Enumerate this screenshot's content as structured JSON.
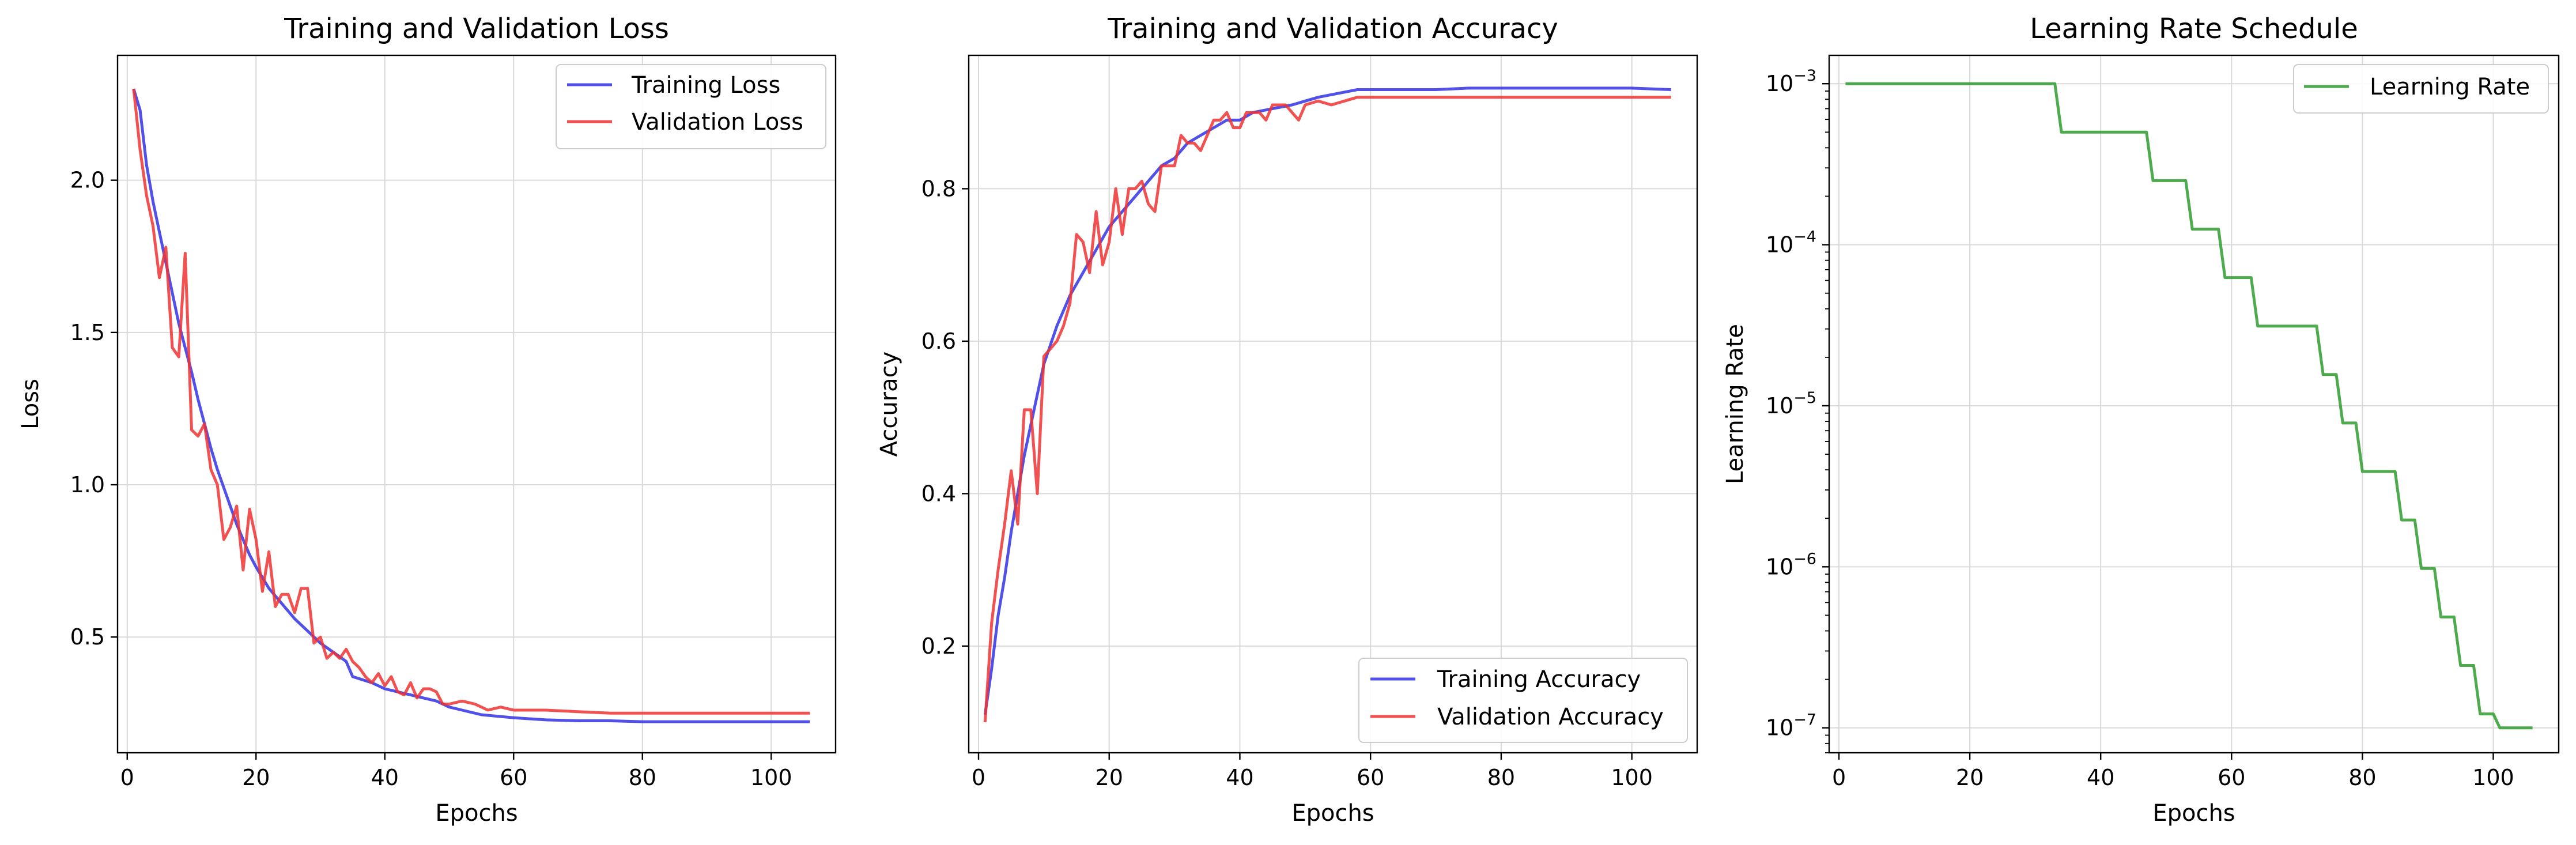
{
  "colors": {
    "train": "#3333e6",
    "val": "#ee3333",
    "lr": "#2e9b2e",
    "grid": "#d9d9d9"
  },
  "chart_data": [
    {
      "type": "line",
      "title": "Training and Validation Loss",
      "xlabel": "Epochs",
      "ylabel": "Loss",
      "xlim": [
        -1.5,
        110
      ],
      "ylim": [
        0.12,
        2.41
      ],
      "xticks": [
        0,
        20,
        40,
        60,
        80,
        100
      ],
      "xtick_labels": [
        "0",
        "20",
        "40",
        "60",
        "80",
        "100"
      ],
      "yticks": [
        0.5,
        1.0,
        1.5,
        2.0
      ],
      "ytick_labels": [
        "0.5",
        "1.0",
        "1.5",
        "2.0"
      ],
      "grid": true,
      "legend_position": "top-right",
      "series": [
        {
          "name": "Training Loss",
          "color": "#3333e6",
          "x": [
            1,
            2,
            3,
            4,
            5,
            6,
            7,
            8,
            9,
            10,
            11,
            12,
            13,
            14,
            15,
            16,
            17,
            18,
            19,
            20,
            22,
            24,
            26,
            28,
            30,
            32,
            34,
            35,
            38,
            40,
            42,
            44,
            46,
            48,
            50,
            52,
            55,
            60,
            65,
            70,
            75,
            80,
            85,
            90,
            95,
            100,
            104,
            106
          ],
          "y": [
            2.3,
            2.23,
            2.05,
            1.93,
            1.83,
            1.73,
            1.63,
            1.53,
            1.45,
            1.37,
            1.28,
            1.2,
            1.12,
            1.05,
            0.99,
            0.93,
            0.87,
            0.82,
            0.77,
            0.73,
            0.66,
            0.61,
            0.56,
            0.52,
            0.48,
            0.45,
            0.42,
            0.37,
            0.35,
            0.33,
            0.32,
            0.31,
            0.3,
            0.29,
            0.27,
            0.26,
            0.245,
            0.235,
            0.228,
            0.225,
            0.225,
            0.222,
            0.222,
            0.222,
            0.222,
            0.222,
            0.222,
            0.222
          ]
        },
        {
          "name": "Validation Loss",
          "color": "#ee3333",
          "x": [
            1,
            2,
            3,
            4,
            5,
            6,
            7,
            8,
            9,
            10,
            11,
            12,
            13,
            14,
            15,
            16,
            17,
            18,
            19,
            20,
            21,
            22,
            23,
            24,
            25,
            26,
            27,
            28,
            29,
            30,
            31,
            32,
            33,
            34,
            35,
            36,
            37,
            38,
            39,
            40,
            41,
            42,
            43,
            44,
            45,
            46,
            47,
            48,
            49,
            50,
            52,
            54,
            56,
            58,
            60,
            62,
            65,
            70,
            75,
            80,
            85,
            90,
            95,
            100,
            106
          ],
          "y": [
            2.3,
            2.1,
            1.95,
            1.85,
            1.68,
            1.78,
            1.45,
            1.42,
            1.76,
            1.18,
            1.16,
            1.2,
            1.05,
            1.0,
            0.82,
            0.86,
            0.93,
            0.72,
            0.92,
            0.82,
            0.65,
            0.78,
            0.6,
            0.64,
            0.64,
            0.58,
            0.66,
            0.66,
            0.48,
            0.5,
            0.43,
            0.45,
            0.43,
            0.46,
            0.42,
            0.4,
            0.37,
            0.35,
            0.38,
            0.34,
            0.37,
            0.32,
            0.31,
            0.35,
            0.3,
            0.33,
            0.33,
            0.32,
            0.28,
            0.28,
            0.29,
            0.28,
            0.26,
            0.27,
            0.26,
            0.26,
            0.26,
            0.255,
            0.25,
            0.25,
            0.25,
            0.25,
            0.25,
            0.25,
            0.25
          ]
        }
      ]
    },
    {
      "type": "line",
      "title": "Training and Validation Accuracy",
      "xlabel": "Epochs",
      "ylabel": "Accuracy",
      "xlim": [
        -1.5,
        110
      ],
      "ylim": [
        0.06,
        0.975
      ],
      "xticks": [
        0,
        20,
        40,
        60,
        80,
        100
      ],
      "xtick_labels": [
        "0",
        "20",
        "40",
        "60",
        "80",
        "100"
      ],
      "yticks": [
        0.2,
        0.4,
        0.6,
        0.8
      ],
      "ytick_labels": [
        "0.2",
        "0.4",
        "0.6",
        "0.8"
      ],
      "grid": true,
      "legend_position": "bottom-right",
      "series": [
        {
          "name": "Training Accuracy",
          "color": "#3333e6",
          "x": [
            1,
            2,
            3,
            4,
            5,
            6,
            7,
            8,
            9,
            10,
            12,
            14,
            16,
            18,
            20,
            22,
            24,
            26,
            28,
            30,
            32,
            34,
            36,
            38,
            40,
            42,
            45,
            48,
            50,
            52,
            55,
            58,
            60,
            65,
            70,
            75,
            80,
            85,
            90,
            95,
            100,
            106
          ],
          "y": [
            0.11,
            0.17,
            0.24,
            0.29,
            0.35,
            0.4,
            0.45,
            0.49,
            0.53,
            0.57,
            0.62,
            0.66,
            0.69,
            0.72,
            0.75,
            0.77,
            0.79,
            0.81,
            0.83,
            0.84,
            0.86,
            0.87,
            0.88,
            0.89,
            0.89,
            0.9,
            0.905,
            0.91,
            0.915,
            0.92,
            0.925,
            0.93,
            0.93,
            0.93,
            0.93,
            0.932,
            0.932,
            0.932,
            0.932,
            0.932,
            0.932,
            0.93
          ]
        },
        {
          "name": "Validation Accuracy",
          "color": "#ee3333",
          "x": [
            1,
            2,
            3,
            4,
            5,
            6,
            7,
            8,
            9,
            10,
            11,
            12,
            13,
            14,
            15,
            16,
            17,
            18,
            19,
            20,
            21,
            22,
            23,
            24,
            25,
            26,
            27,
            28,
            29,
            30,
            31,
            32,
            33,
            34,
            35,
            36,
            37,
            38,
            39,
            40,
            41,
            42,
            43,
            44,
            45,
            46,
            47,
            48,
            49,
            50,
            52,
            54,
            56,
            58,
            60,
            65,
            70,
            75,
            80,
            85,
            90,
            95,
            100,
            106
          ],
          "y": [
            0.1,
            0.23,
            0.3,
            0.36,
            0.43,
            0.36,
            0.51,
            0.51,
            0.4,
            0.58,
            0.59,
            0.6,
            0.62,
            0.65,
            0.74,
            0.73,
            0.69,
            0.77,
            0.7,
            0.73,
            0.8,
            0.74,
            0.8,
            0.8,
            0.81,
            0.78,
            0.77,
            0.83,
            0.83,
            0.83,
            0.87,
            0.86,
            0.86,
            0.85,
            0.87,
            0.89,
            0.89,
            0.9,
            0.88,
            0.88,
            0.9,
            0.9,
            0.9,
            0.89,
            0.91,
            0.91,
            0.91,
            0.9,
            0.89,
            0.91,
            0.915,
            0.91,
            0.915,
            0.92,
            0.92,
            0.92,
            0.92,
            0.92,
            0.92,
            0.92,
            0.92,
            0.92,
            0.92,
            0.92
          ]
        }
      ]
    },
    {
      "type": "line",
      "title": "Learning Rate Schedule",
      "xlabel": "Epochs",
      "ylabel": "Learning Rate",
      "yscale": "log",
      "xlim": [
        -1.5,
        110
      ],
      "ylim": [
        7e-08,
        0.0015
      ],
      "xticks": [
        0,
        20,
        40,
        60,
        80,
        100
      ],
      "xtick_labels": [
        "0",
        "20",
        "40",
        "60",
        "80",
        "100"
      ],
      "yticks": [
        1e-07,
        1e-06,
        1e-05,
        0.0001,
        0.001
      ],
      "ytick_labels": [
        {
          "base": "10",
          "exp": "−7"
        },
        {
          "base": "10",
          "exp": "−6"
        },
        {
          "base": "10",
          "exp": "−5"
        },
        {
          "base": "10",
          "exp": "−4"
        },
        {
          "base": "10",
          "exp": "−3"
        }
      ],
      "grid": true,
      "legend_position": "top-right",
      "series": [
        {
          "name": "Learning Rate",
          "color": "#2e9b2e",
          "step": true,
          "x": [
            1,
            33,
            34,
            47,
            48,
            53,
            54,
            58,
            59,
            63,
            64,
            73,
            74,
            76,
            77,
            79,
            80,
            85,
            86,
            88,
            89,
            91,
            92,
            94,
            95,
            97,
            98,
            100,
            101,
            106
          ],
          "y": [
            0.001,
            0.001,
            0.0005,
            0.0005,
            0.00025,
            0.00025,
            0.000125,
            0.000125,
            6.25e-05,
            6.25e-05,
            3.125e-05,
            3.125e-05,
            1.5625e-05,
            1.5625e-05,
            7.8125e-06,
            7.8125e-06,
            3.90625e-06,
            3.90625e-06,
            1.953e-06,
            1.953e-06,
            9.77e-07,
            9.77e-07,
            4.88e-07,
            4.88e-07,
            2.44e-07,
            2.44e-07,
            1.22e-07,
            1.22e-07,
            1e-07,
            1e-07
          ]
        }
      ]
    }
  ]
}
